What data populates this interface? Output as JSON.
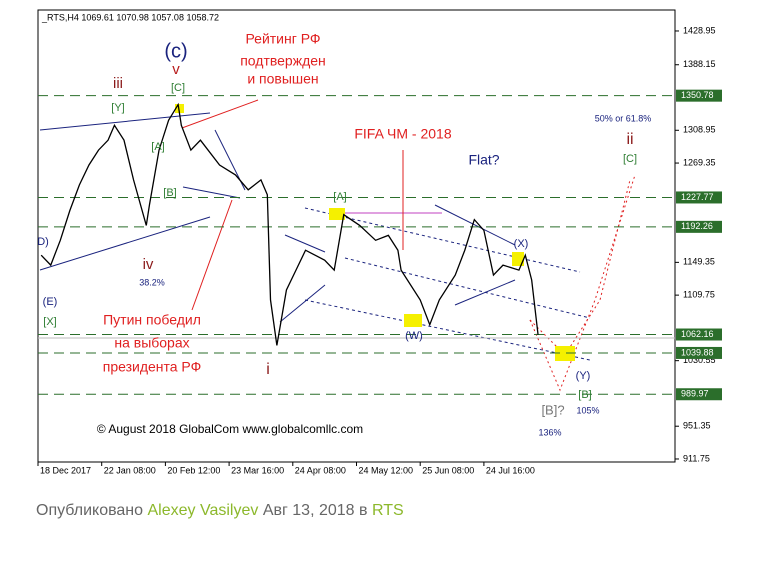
{
  "chart_data": {
    "type": "line",
    "header": "_RTS,H4  1069.61 1070.98 1057.08 1058.72",
    "xlim": [
      0,
      200
    ],
    "ylim": [
      908.1,
      1454.3
    ],
    "xticks": [
      {
        "value": 0,
        "label": "18 Dec 2017"
      },
      {
        "value": 20,
        "label": "22 Jan 08:00"
      },
      {
        "value": 40,
        "label": "20 Feb 12:00"
      },
      {
        "value": 60,
        "label": "23 Mar 16:00"
      },
      {
        "value": 80,
        "label": "24 Apr 08:00"
      },
      {
        "value": 100,
        "label": "24 May 12:00"
      },
      {
        "value": 120,
        "label": "25 Jun 08:00"
      },
      {
        "value": 140,
        "label": "24 Jul 16:00"
      }
    ],
    "yticks": [
      1428.95,
      1388.15,
      1308.95,
      1269.35,
      1149.35,
      1109.75,
      1030.55,
      951.35,
      911.75
    ],
    "levels": [
      1350.78,
      1227.77,
      1192.26,
      1062.16,
      1039.88,
      989.97
    ],
    "level_color": "#2b6e2b",
    "series": [
      {
        "name": "RTS",
        "color": "#000000",
        "x": [
          1,
          4,
          7,
          10,
          13,
          16,
          19,
          22,
          24,
          27,
          30,
          34,
          35,
          38,
          41,
          44,
          45,
          48,
          51,
          57,
          62,
          66,
          70,
          72,
          73,
          75,
          78,
          81,
          84,
          87,
          90,
          93,
          96,
          101,
          106,
          110,
          113,
          114,
          120,
          123,
          126,
          131,
          134,
          137,
          140,
          143,
          146,
          151,
          153,
          155,
          157
        ],
        "values": [
          1158,
          1146,
          1176,
          1212,
          1243,
          1267,
          1285,
          1297,
          1315,
          1297,
          1249,
          1194,
          1219,
          1285,
          1321,
          1340,
          1315,
          1285,
          1297,
          1267,
          1255,
          1237,
          1249,
          1231,
          1104,
          1049,
          1116,
          1140,
          1164,
          1158,
          1152,
          1140,
          1207,
          1194,
          1176,
          1182,
          1164,
          1140,
          1104,
          1074,
          1104,
          1134,
          1164,
          1201,
          1188,
          1134,
          1146,
          1140,
          1158,
          1128,
          1062
        ]
      }
    ],
    "annotations": [
      {
        "text": "(c)",
        "color": "#1a237e"
      },
      {
        "text": "v",
        "color": "#b71c1c"
      },
      {
        "text": "[C]",
        "color": "#2e7d32"
      },
      {
        "text": "iii",
        "color": "#8b1a1a"
      },
      {
        "text": "[Y]",
        "color": "#2e7d32"
      },
      {
        "text": "[A]",
        "color": "#2e7d32"
      },
      {
        "text": "[B]",
        "color": "#2e7d32"
      },
      {
        "text": "iv",
        "color": "#8b1a1a"
      },
      {
        "text": "38.2%",
        "color": "#1a237e"
      },
      {
        "text": "(E)",
        "color": "#1a237e"
      },
      {
        "text": "[X]",
        "color": "#2e7d32"
      },
      {
        "text": "D)",
        "color": "#1a237e"
      },
      {
        "text": "Рейтинг РФ",
        "color": "#e02020"
      },
      {
        "text": "подтвержден",
        "color": "#e02020"
      },
      {
        "text": "и повышен",
        "color": "#e02020"
      },
      {
        "text": "FIFA ЧМ - 2018",
        "color": "#e02020"
      },
      {
        "text": "Flat?",
        "color": "#1a237e"
      },
      {
        "text": "50% or 61.8%",
        "color": "#1a237e"
      },
      {
        "text": "ii",
        "color": "#8b1a1a"
      },
      {
        "text": "[C]",
        "color": "#2e7d32"
      },
      {
        "text": "[A]",
        "color": "#2e7d32"
      },
      {
        "text": "(X)",
        "color": "#1a237e"
      },
      {
        "text": "(W)",
        "color": "#1a237e"
      },
      {
        "text": "Путин победил",
        "color": "#e02020"
      },
      {
        "text": "на выборах",
        "color": "#e02020"
      },
      {
        "text": "президента РФ",
        "color": "#e02020"
      },
      {
        "text": "i",
        "color": "#8b1a1a"
      },
      {
        "text": "(Y)",
        "color": "#1a237e"
      },
      {
        "text": "[B]",
        "color": "#2e7d32"
      },
      {
        "text": "[B]?",
        "color": "#777777"
      },
      {
        "text": "105%",
        "color": "#1a237e"
      },
      {
        "text": "136%",
        "color": "#1a237e"
      },
      {
        "text": "© August 2018 GlobalCom www.globalcomllc.com",
        "color": "#000000"
      }
    ]
  },
  "footer": {
    "prefix": "Опубликовано",
    "author": "Alexey Vasilyev",
    "date": "Авг 13, 2018 в",
    "symbol": "RTS"
  }
}
